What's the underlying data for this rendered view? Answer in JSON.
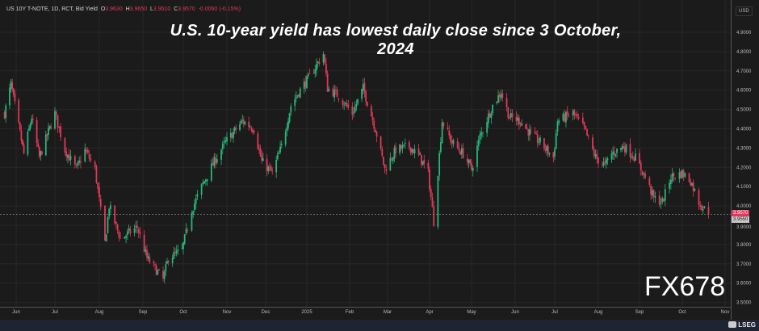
{
  "header": {
    "symbol": "US 10Y T-NOTE, 1D, RCT, Bid Yield",
    "open_label": "O",
    "open": "3.9630",
    "high_label": "H",
    "high": "3.9650",
    "low_label": "L",
    "low": "3.9510",
    "close_label": "C",
    "close": "3.9570",
    "change": "-0.0060 (-0.15%)"
  },
  "currency": "USD",
  "watermark": "FX678",
  "brand": "LSEG",
  "colors": {
    "up": "#27b57a",
    "down": "#e0385a",
    "background": "#1b1b1b",
    "grid": "#272727"
  },
  "price_tags": {
    "last": "3.9570",
    "bid": "3.9550"
  },
  "chart_data": {
    "type": "candlestick",
    "title": "U.S. 10-year yield has lowest daily close since 3 October, 2024",
    "ylim": [
      3.45,
      4.97
    ],
    "y_ticks": [
      "4.9000",
      "4.8000",
      "4.7000",
      "4.6000",
      "4.5000",
      "4.4000",
      "4.3000",
      "4.2000",
      "4.1000",
      "4.0000",
      "3.9000",
      "3.8000",
      "3.7000",
      "3.6000",
      "3.5000"
    ],
    "x_ticks": [
      "Jun",
      "Jul",
      "Aug",
      "Sep",
      "Oct",
      "Nov",
      "Dec",
      "2025",
      "Feb",
      "Mar",
      "Apr",
      "May",
      "Jun",
      "Jul",
      "Aug",
      "Sep",
      "Oct",
      "Nov"
    ],
    "grid": true,
    "last_close": 3.957,
    "close_path": [
      [
        "2024-05-23",
        4.48
      ],
      [
        "2024-05-28",
        4.63
      ],
      [
        "2024-06-07",
        4.27
      ],
      [
        "2024-06-13",
        4.46
      ],
      [
        "2024-06-19",
        4.25
      ],
      [
        "2024-07-01",
        4.48
      ],
      [
        "2024-07-08",
        4.29
      ],
      [
        "2024-07-16",
        4.19
      ],
      [
        "2024-07-22",
        4.29
      ],
      [
        "2024-07-29",
        4.19
      ],
      [
        "2024-08-05",
        3.81
      ],
      [
        "2024-08-08",
        4.0
      ],
      [
        "2024-08-16",
        3.83
      ],
      [
        "2024-08-28",
        3.89
      ],
      [
        "2024-09-04",
        3.73
      ],
      [
        "2024-09-16",
        3.62
      ],
      [
        "2024-09-20",
        3.73
      ],
      [
        "2024-09-30",
        3.77
      ],
      [
        "2024-10-07",
        3.98
      ],
      [
        "2024-10-14",
        4.1
      ],
      [
        "2024-10-23",
        4.23
      ],
      [
        "2024-10-31",
        4.33
      ],
      [
        "2024-11-13",
        4.44
      ],
      [
        "2024-11-22",
        4.4
      ],
      [
        "2024-11-28",
        4.23
      ],
      [
        "2024-12-06",
        4.17
      ],
      [
        "2024-12-13",
        4.31
      ],
      [
        "2024-12-20",
        4.52
      ],
      [
        "2024-12-26",
        4.59
      ],
      [
        "2025-01-03",
        4.67
      ],
      [
        "2025-01-13",
        4.79
      ],
      [
        "2025-01-16",
        4.61
      ],
      [
        "2025-01-24",
        4.57
      ],
      [
        "2025-02-03",
        4.48
      ],
      [
        "2025-02-11",
        4.61
      ],
      [
        "2025-02-20",
        4.4
      ],
      [
        "2025-02-27",
        4.19
      ],
      [
        "2025-03-07",
        4.29
      ],
      [
        "2025-03-17",
        4.31
      ],
      [
        "2025-03-25",
        4.25
      ],
      [
        "2025-03-31",
        4.17
      ],
      [
        "2025-04-04",
        3.92
      ],
      [
        "2025-04-10",
        4.44
      ],
      [
        "2025-04-17",
        4.33
      ],
      [
        "2025-04-25",
        4.27
      ],
      [
        "2025-05-01",
        4.19
      ],
      [
        "2025-05-07",
        4.36
      ],
      [
        "2025-05-16",
        4.52
      ],
      [
        "2025-05-22",
        4.59
      ],
      [
        "2025-05-28",
        4.46
      ],
      [
        "2025-06-05",
        4.44
      ],
      [
        "2025-06-13",
        4.37
      ],
      [
        "2025-06-20",
        4.33
      ],
      [
        "2025-06-30",
        4.25
      ],
      [
        "2025-07-03",
        4.44
      ],
      [
        "2025-07-14",
        4.48
      ],
      [
        "2025-07-22",
        4.4
      ],
      [
        "2025-07-30",
        4.25
      ],
      [
        "2025-08-06",
        4.21
      ],
      [
        "2025-08-11",
        4.27
      ],
      [
        "2025-08-20",
        4.31
      ],
      [
        "2025-08-29",
        4.25
      ],
      [
        "2025-09-05",
        4.15
      ],
      [
        "2025-09-11",
        4.04
      ],
      [
        "2025-09-17",
        4.02
      ],
      [
        "2025-09-23",
        4.15
      ],
      [
        "2025-10-01",
        4.17
      ],
      [
        "2025-10-07",
        4.13
      ],
      [
        "2025-10-13",
        4.02
      ],
      [
        "2025-10-20",
        3.957
      ]
    ]
  }
}
